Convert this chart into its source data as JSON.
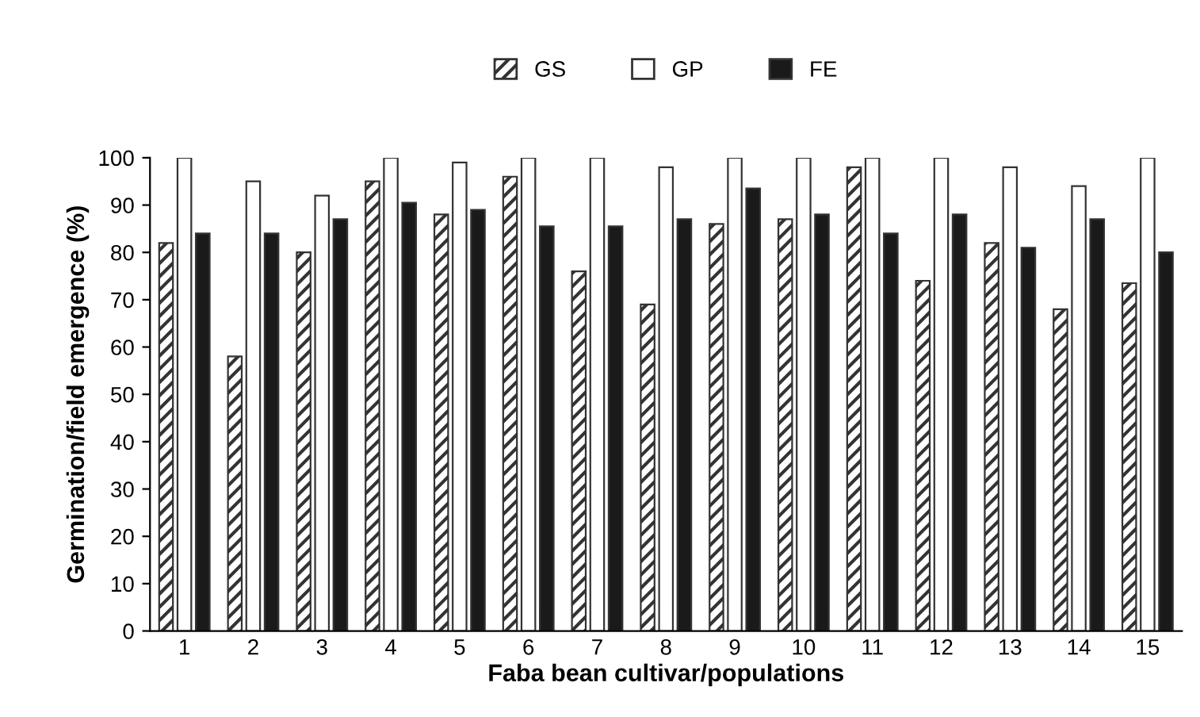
{
  "chart_data": {
    "type": "bar",
    "xlabel": "Faba bean cultivar/populations",
    "ylabel": "Germination/field emergence (%)",
    "categories": [
      "1",
      "2",
      "3",
      "4",
      "5",
      "6",
      "7",
      "8",
      "9",
      "10",
      "11",
      "12",
      "13",
      "14",
      "15"
    ],
    "series": [
      {
        "name": "GS",
        "color": "#333333",
        "values": [
          82,
          58,
          80,
          95,
          88,
          96,
          76,
          69,
          86,
          87,
          98,
          74,
          82,
          68,
          73.5
        ]
      },
      {
        "name": "GP",
        "color": "#ffffff",
        "values": [
          100,
          95,
          92,
          100,
          99,
          100,
          100,
          98,
          100,
          100,
          100,
          100,
          98,
          94,
          100
        ]
      },
      {
        "name": "FE",
        "color": "#1a1a1a",
        "values": [
          84,
          84,
          87,
          90.5,
          89,
          85.5,
          85.5,
          87,
          93.5,
          88,
          84,
          88,
          81,
          87,
          80
        ]
      }
    ],
    "ylim": [
      0,
      100
    ],
    "yticks": [
      0,
      10,
      20,
      30,
      40,
      50,
      60,
      70,
      80,
      90,
      100
    ],
    "grid": false,
    "legend": "top"
  }
}
